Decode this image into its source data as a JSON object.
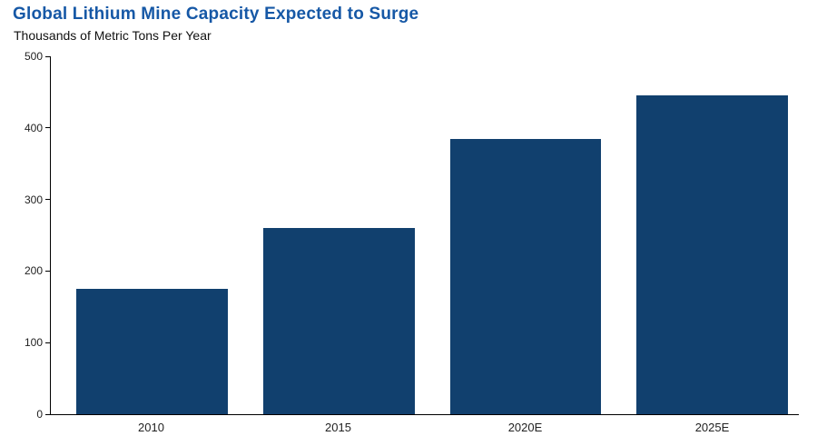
{
  "chart_data": {
    "type": "bar",
    "title": "Global Lithium Mine Capacity Expected to Surge",
    "subtitle": "Thousands of Metric Tons Per Year",
    "categories": [
      "2010",
      "2015",
      "2020E",
      "2025E"
    ],
    "values": [
      175,
      260,
      385,
      445
    ],
    "ylabel": "Thousands of Metric Tons Per Year",
    "xlabel": "",
    "ylim": [
      0,
      500
    ],
    "yticks": [
      0,
      100,
      200,
      300,
      400,
      500
    ],
    "grid": false,
    "legend": false,
    "bar_color": "#11406e",
    "title_color": "#1658a6",
    "axis_color": "#000000"
  }
}
